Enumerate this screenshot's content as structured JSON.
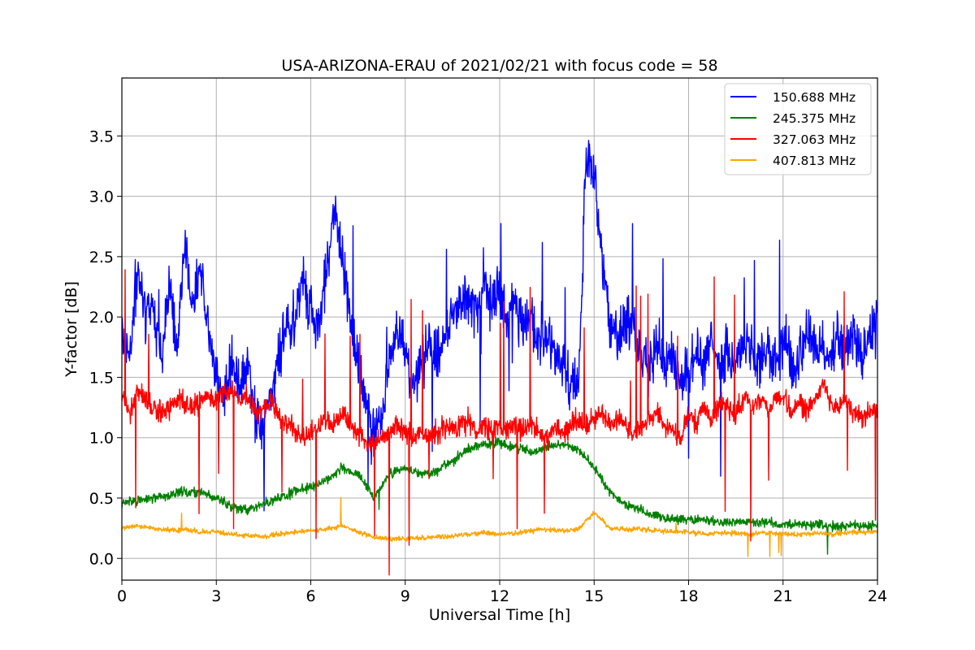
{
  "chart_data": {
    "type": "line",
    "title": "USA-ARIZONA-ERAU of 2021/02/21 with focus code = 58",
    "xlabel": "Universal Time [h]",
    "ylabel": "Y-factor [dB]",
    "xlim": [
      0,
      24
    ],
    "ylim": [
      -0.18,
      3.98
    ],
    "x_ticks": [
      0,
      3,
      6,
      9,
      12,
      15,
      18,
      21,
      24
    ],
    "x_tick_labels": [
      "0",
      "3",
      "6",
      "9",
      "12",
      "15",
      "18",
      "21",
      "24"
    ],
    "y_ticks": [
      0.0,
      0.5,
      1.0,
      1.5,
      2.0,
      2.5,
      3.0,
      3.5
    ],
    "y_tick_labels": [
      "0.0",
      "0.5",
      "1.0",
      "1.5",
      "2.0",
      "2.5",
      "3.0",
      "3.5"
    ],
    "grid": true,
    "legend_position": "top-right",
    "series": [
      {
        "name": "150.688 MHz",
        "color": "#0000ff",
        "x": [
          0,
          0.25,
          0.5,
          0.75,
          1,
          1.25,
          1.5,
          1.75,
          2,
          2.25,
          2.5,
          2.75,
          3,
          3.25,
          3.5,
          3.75,
          4,
          4.25,
          4.5,
          4.75,
          5,
          5.25,
          5.5,
          5.75,
          6,
          6.25,
          6.5,
          6.75,
          7,
          7.25,
          7.5,
          7.75,
          8,
          8.25,
          8.5,
          8.75,
          9,
          9.25,
          9.5,
          9.75,
          10,
          10.25,
          10.5,
          10.75,
          11,
          11.25,
          11.5,
          11.75,
          12,
          12.25,
          12.5,
          12.75,
          13,
          13.25,
          13.5,
          13.75,
          14,
          14.25,
          14.5,
          14.75,
          15,
          15.25,
          15.5,
          15.75,
          16,
          16.25,
          16.5,
          16.75,
          17,
          17.25,
          17.5,
          17.75,
          18,
          18.25,
          18.5,
          18.75,
          19,
          19.25,
          19.5,
          19.75,
          20,
          20.25,
          20.5,
          20.75,
          21,
          21.25,
          21.5,
          21.75,
          22,
          22.25,
          22.5,
          22.75,
          23,
          23.25,
          23.5,
          23.75,
          24
        ],
        "y": [
          1.9,
          1.7,
          2.4,
          2.0,
          2.1,
          1.6,
          2.3,
          1.8,
          2.6,
          2.1,
          2.4,
          1.9,
          1.5,
          1.3,
          1.7,
          1.4,
          1.6,
          1.2,
          1.1,
          1.3,
          1.7,
          1.9,
          2.0,
          2.3,
          2.1,
          1.9,
          2.4,
          2.9,
          2.5,
          1.9,
          1.6,
          1.3,
          1.0,
          1.2,
          1.6,
          1.9,
          1.7,
          1.5,
          1.6,
          1.8,
          1.6,
          1.8,
          2.0,
          2.2,
          2.1,
          2.0,
          2.3,
          2.1,
          2.2,
          2.0,
          2.1,
          1.9,
          2.0,
          1.8,
          1.9,
          1.7,
          1.6,
          1.5,
          1.4,
          3.4,
          3.2,
          2.5,
          1.9,
          1.8,
          2.0,
          1.9,
          1.7,
          1.6,
          1.8,
          1.6,
          1.7,
          1.5,
          1.6,
          1.7,
          1.6,
          1.8,
          1.6,
          1.7,
          1.6,
          1.8,
          1.7,
          1.6,
          1.7,
          1.6,
          1.8,
          1.7,
          1.6,
          1.9,
          1.8,
          1.7,
          1.6,
          1.8,
          1.7,
          1.8,
          1.7,
          1.8,
          1.9
        ]
      },
      {
        "name": "245.375 MHz",
        "color": "#008000",
        "x": [
          0,
          0.5,
          1,
          1.5,
          2,
          2.5,
          3,
          3.5,
          4,
          4.5,
          5,
          5.5,
          6,
          6.5,
          7,
          7.5,
          8,
          8.5,
          9,
          9.5,
          10,
          10.5,
          11,
          11.5,
          12,
          12.5,
          13,
          13.5,
          14,
          14.5,
          15,
          15.5,
          16,
          16.5,
          17,
          17.5,
          18,
          18.5,
          19,
          19.5,
          20,
          20.5,
          21,
          21.5,
          22,
          22.5,
          23,
          23.5,
          24
        ],
        "y": [
          0.45,
          0.48,
          0.5,
          0.52,
          0.55,
          0.55,
          0.5,
          0.42,
          0.4,
          0.45,
          0.5,
          0.55,
          0.6,
          0.65,
          0.75,
          0.7,
          0.5,
          0.7,
          0.75,
          0.7,
          0.72,
          0.8,
          0.9,
          0.95,
          0.95,
          0.92,
          0.88,
          0.92,
          0.95,
          0.9,
          0.75,
          0.55,
          0.45,
          0.4,
          0.35,
          0.33,
          0.32,
          0.32,
          0.3,
          0.3,
          0.3,
          0.3,
          0.28,
          0.28,
          0.28,
          0.27,
          0.27,
          0.27,
          0.27
        ]
      },
      {
        "name": "327.063 MHz",
        "color": "#ff0000",
        "x": [
          0,
          0.25,
          0.5,
          0.75,
          1,
          1.25,
          1.5,
          1.75,
          2,
          2.25,
          2.5,
          2.75,
          3,
          3.25,
          3.5,
          3.75,
          4,
          4.25,
          4.5,
          4.75,
          5,
          5.25,
          5.5,
          5.75,
          6,
          6.25,
          6.5,
          6.75,
          7,
          7.25,
          7.5,
          7.75,
          8,
          8.25,
          8.5,
          8.75,
          9,
          9.25,
          9.5,
          9.75,
          10,
          10.25,
          10.5,
          10.75,
          11,
          11.25,
          11.5,
          11.75,
          12,
          12.25,
          12.5,
          12.75,
          13,
          13.25,
          13.5,
          13.75,
          14,
          14.25,
          14.5,
          14.75,
          15,
          15.25,
          15.5,
          15.75,
          16,
          16.25,
          16.5,
          16.75,
          17,
          17.25,
          17.5,
          17.75,
          18,
          18.25,
          18.5,
          18.75,
          19,
          19.25,
          19.5,
          19.75,
          20,
          20.25,
          20.5,
          20.75,
          21,
          21.25,
          21.5,
          21.75,
          22,
          22.25,
          22.5,
          22.75,
          23,
          23.25,
          23.5,
          23.75,
          24
        ],
        "y": [
          1.35,
          1.2,
          1.4,
          1.3,
          1.25,
          1.2,
          1.25,
          1.3,
          1.3,
          1.25,
          1.3,
          1.35,
          1.3,
          1.35,
          1.4,
          1.3,
          1.35,
          1.2,
          1.25,
          1.3,
          1.2,
          1.1,
          1.05,
          1.0,
          1.05,
          1.1,
          1.15,
          1.1,
          1.2,
          1.1,
          1.05,
          0.95,
          0.95,
          1.0,
          1.05,
          1.1,
          1.05,
          1.0,
          1.05,
          1.0,
          1.05,
          1.1,
          1.05,
          1.1,
          1.15,
          1.05,
          1.1,
          1.05,
          1.1,
          1.05,
          1.1,
          1.05,
          1.1,
          1.05,
          1.0,
          1.1,
          1.05,
          1.1,
          1.15,
          1.1,
          1.15,
          1.2,
          1.1,
          1.15,
          1.1,
          1.05,
          1.1,
          1.15,
          1.2,
          1.1,
          1.05,
          1.0,
          1.2,
          1.1,
          1.25,
          1.15,
          1.3,
          1.25,
          1.2,
          1.35,
          1.25,
          1.3,
          1.25,
          1.3,
          1.35,
          1.2,
          1.3,
          1.25,
          1.3,
          1.45,
          1.3,
          1.25,
          1.3,
          1.2,
          1.15,
          1.2,
          1.25
        ]
      },
      {
        "name": "407.813 MHz",
        "color": "#ffa500",
        "x": [
          0,
          0.5,
          1,
          1.5,
          2,
          2.5,
          3,
          3.5,
          4,
          4.5,
          5,
          5.5,
          6,
          6.5,
          7,
          7.5,
          8,
          8.5,
          9,
          9.5,
          10,
          10.5,
          11,
          11.5,
          12,
          12.5,
          13,
          13.5,
          14,
          14.5,
          15,
          15.5,
          16,
          16.5,
          17,
          17.5,
          18,
          18.5,
          19,
          19.5,
          20,
          20.5,
          21,
          21.5,
          22,
          22.5,
          23,
          23.5,
          24
        ],
        "y": [
          0.25,
          0.27,
          0.25,
          0.23,
          0.24,
          0.22,
          0.22,
          0.2,
          0.19,
          0.18,
          0.2,
          0.22,
          0.23,
          0.24,
          0.27,
          0.22,
          0.18,
          0.16,
          0.16,
          0.17,
          0.18,
          0.18,
          0.2,
          0.21,
          0.2,
          0.21,
          0.23,
          0.24,
          0.23,
          0.24,
          0.38,
          0.25,
          0.24,
          0.24,
          0.23,
          0.22,
          0.22,
          0.2,
          0.21,
          0.21,
          0.2,
          0.21,
          0.2,
          0.2,
          0.21,
          0.2,
          0.21,
          0.22,
          0.22
        ]
      }
    ]
  }
}
